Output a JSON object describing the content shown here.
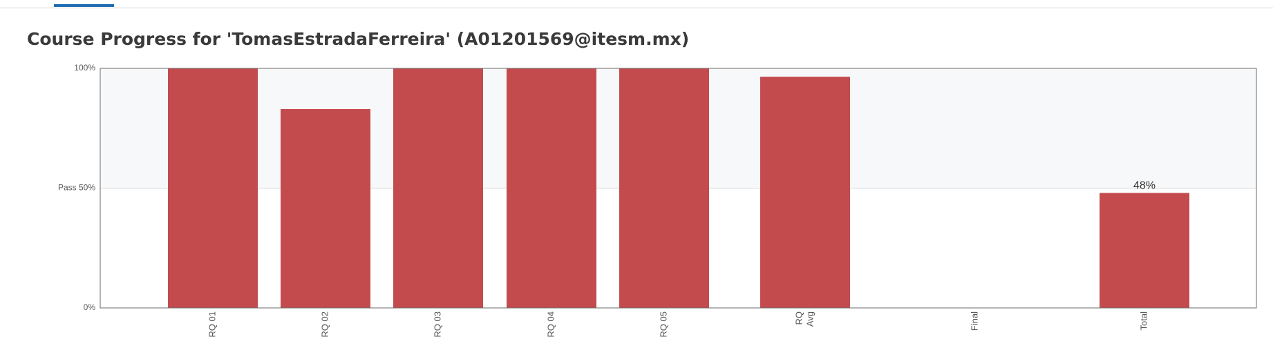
{
  "page": {
    "title": "Course Progress for 'TomasEstradaFerreira' (A01201569@itesm.mx)"
  },
  "colors": {
    "bar": "#c44b4d",
    "pass_zone": "#f7f8fa",
    "tab_indicator": "#1f6fb2"
  },
  "chart_data": {
    "type": "bar",
    "categories": [
      "RQ 01",
      "RQ 02",
      "RQ 03",
      "RQ 04",
      "RQ 05",
      "RQ Avg",
      "Final",
      "Total"
    ],
    "values": [
      100,
      83,
      100,
      100,
      100,
      96.5,
      0,
      48
    ],
    "data_labels": [
      "",
      "",
      "",
      "",
      "",
      "",
      "",
      "48%"
    ],
    "ylim": [
      0,
      100
    ],
    "yticks": [
      {
        "value": 0,
        "label": "0%"
      },
      {
        "value": 50,
        "label": "Pass 50%"
      },
      {
        "value": 100,
        "label": "100%"
      }
    ],
    "pass_threshold": 50,
    "grid": "pass line only",
    "legend": "none",
    "title": "",
    "xlabel": "",
    "ylabel": ""
  }
}
